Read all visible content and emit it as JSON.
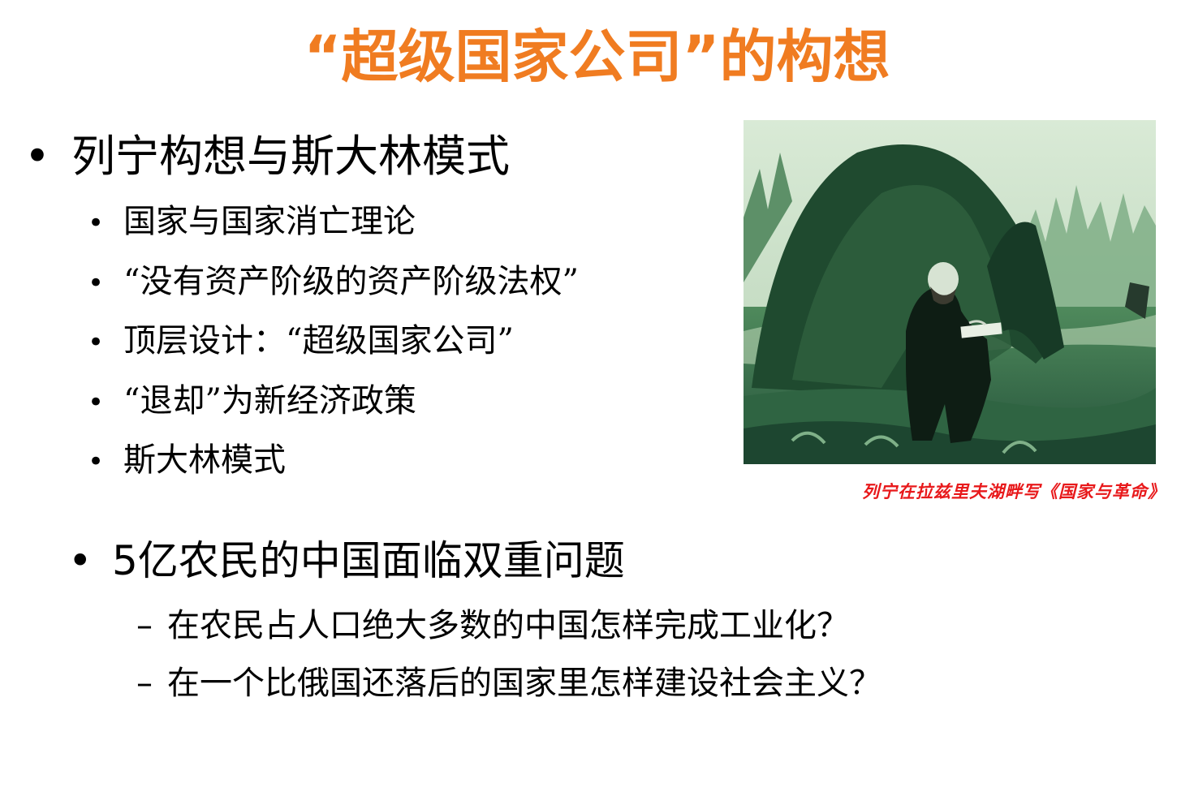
{
  "slide": {
    "title": "“超级国家公司”的构想",
    "title_color": "#f07c21"
  },
  "section1": {
    "bullet": "•",
    "heading": "列宁构想与斯大林模式",
    "items": [
      "国家与国家消亡理论",
      "“没有资产阶级的资产阶级法权”",
      "顶层设计：“超级国家公司”",
      "“退却”为新经济政策",
      "斯大林模式"
    ]
  },
  "image": {
    "caption": "列宁在拉兹里夫湖畔写《国家与革命》",
    "caption_color": "#e8191b",
    "icon": "lenin-painting"
  },
  "section2": {
    "bullet": "•",
    "heading": "5亿农民的中国面临双重问题",
    "dash": "–",
    "items": [
      "在农民占人口绝大多数的中国怎样完成工业化？",
      "在一个比俄国还落后的国家里怎样建设社会主义？"
    ]
  }
}
